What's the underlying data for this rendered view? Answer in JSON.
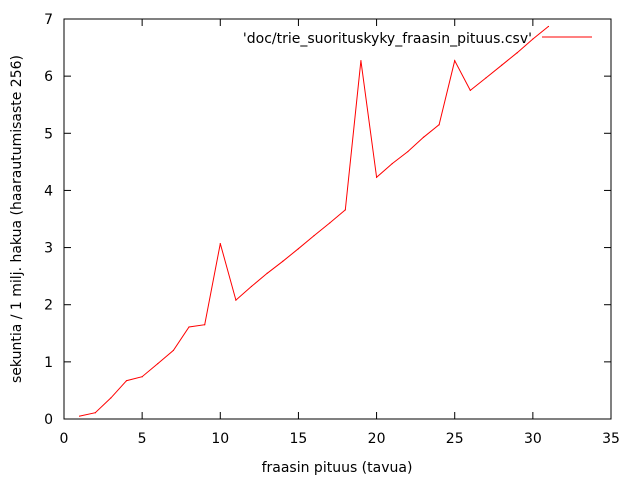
{
  "chart_data": {
    "type": "line",
    "title": "",
    "xlabel": "fraasin pituus (tavua)",
    "ylabel": "sekuntia / 1 milj. hakua (haarautumisaste 256)",
    "xlim": [
      0,
      35
    ],
    "ylim": [
      0,
      7
    ],
    "xticks": [
      0,
      5,
      10,
      15,
      20,
      25,
      30,
      35
    ],
    "yticks": [
      0,
      1,
      2,
      3,
      4,
      5,
      6,
      7
    ],
    "grid": false,
    "legend_position": "top-right",
    "series": [
      {
        "name": "'doc/trie_suorituskyky_fraasin_pituus.csv'",
        "color": "#ff0000",
        "x": [
          1,
          2,
          3,
          4,
          5,
          6,
          7,
          8,
          9,
          10,
          11,
          12,
          13,
          14,
          15,
          16,
          17,
          18,
          19,
          20,
          21,
          22,
          23,
          24,
          25,
          26,
          27,
          28,
          29,
          30,
          31
        ],
        "y": [
          0.05,
          0.11,
          0.37,
          0.67,
          0.74,
          0.97,
          1.2,
          1.61,
          1.65,
          3.07,
          2.08,
          2.32,
          2.55,
          2.76,
          2.98,
          3.21,
          3.43,
          3.66,
          6.27,
          4.23,
          4.47,
          4.68,
          4.93,
          5.15,
          6.27,
          5.75,
          5.97,
          6.19,
          6.41,
          6.65,
          6.87
        ]
      }
    ]
  }
}
